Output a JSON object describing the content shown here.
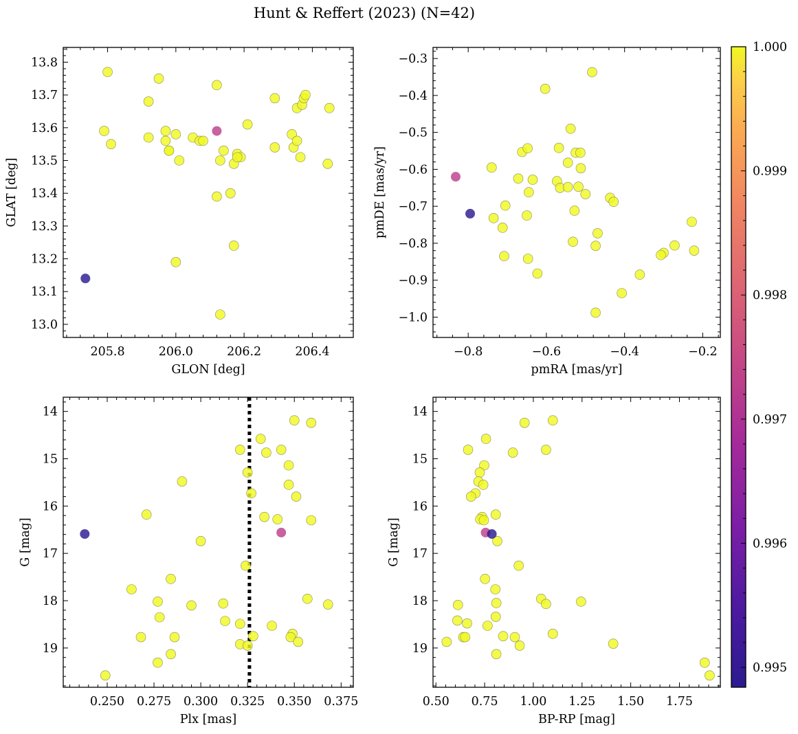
{
  "title": "Hunt & Reffert (2023) (N=42)",
  "colorbar": {
    "min": 0.99484,
    "max": 1.0,
    "ticks": [
      "0.995",
      "0.996",
      "0.997",
      "0.998",
      "0.999",
      "1.000"
    ],
    "tick_values": [
      0.995,
      0.996,
      0.997,
      0.998,
      0.999,
      1.0
    ],
    "colormap": "plasma"
  },
  "chart_data": [
    {
      "type": "scatter",
      "xlabel": "GLON [deg]",
      "ylabel": "GLAT [deg]",
      "xlim": [
        205.67,
        206.52
      ],
      "ylim": [
        12.96,
        13.845
      ],
      "xticks": [
        205.8,
        206.0,
        206.2,
        206.4
      ],
      "xtick_labels": [
        "205.8",
        "206.0",
        "206.2",
        "206.4"
      ],
      "yticks": [
        13.0,
        13.1,
        13.2,
        13.3,
        13.4,
        13.5,
        13.6,
        13.7,
        13.8
      ],
      "ytick_labels": [
        "13.0",
        "13.1",
        "13.2",
        "13.3",
        "13.4",
        "13.5",
        "13.6",
        "13.7",
        "13.8"
      ],
      "points": [
        {
          "x": 205.735,
          "y": 13.14,
          "c": 0.99484
        },
        {
          "x": 206.12,
          "y": 13.59,
          "c": 0.99728
        },
        {
          "x": 205.8,
          "y": 13.77,
          "c": 1.0
        },
        {
          "x": 205.79,
          "y": 13.59,
          "c": 1.0
        },
        {
          "x": 205.81,
          "y": 13.55,
          "c": 1.0
        },
        {
          "x": 205.95,
          "y": 13.75,
          "c": 1.0
        },
        {
          "x": 205.92,
          "y": 13.68,
          "c": 1.0
        },
        {
          "x": 205.92,
          "y": 13.57,
          "c": 1.0
        },
        {
          "x": 205.97,
          "y": 13.59,
          "c": 1.0
        },
        {
          "x": 205.97,
          "y": 13.56,
          "c": 1.0
        },
        {
          "x": 205.98,
          "y": 13.53,
          "c": 1.0
        },
        {
          "x": 205.98,
          "y": 13.53,
          "c": 1.0
        },
        {
          "x": 206.0,
          "y": 13.58,
          "c": 1.0
        },
        {
          "x": 206.01,
          "y": 13.5,
          "c": 1.0
        },
        {
          "x": 206.05,
          "y": 13.57,
          "c": 1.0
        },
        {
          "x": 206.07,
          "y": 13.56,
          "c": 1.0
        },
        {
          "x": 206.08,
          "y": 13.56,
          "c": 1.0
        },
        {
          "x": 206.12,
          "y": 13.73,
          "c": 1.0
        },
        {
          "x": 206.13,
          "y": 13.5,
          "c": 1.0
        },
        {
          "x": 206.14,
          "y": 13.53,
          "c": 1.0
        },
        {
          "x": 206.12,
          "y": 13.39,
          "c": 1.0
        },
        {
          "x": 206.16,
          "y": 13.4,
          "c": 1.0
        },
        {
          "x": 206.17,
          "y": 13.49,
          "c": 1.0
        },
        {
          "x": 206.18,
          "y": 13.52,
          "c": 1.0
        },
        {
          "x": 206.19,
          "y": 13.51,
          "c": 1.0
        },
        {
          "x": 206.21,
          "y": 13.61,
          "c": 1.0
        },
        {
          "x": 206.17,
          "y": 13.24,
          "c": 1.0
        },
        {
          "x": 206.0,
          "y": 13.19,
          "c": 1.0
        },
        {
          "x": 206.13,
          "y": 13.03,
          "c": 1.0
        },
        {
          "x": 206.29,
          "y": 13.69,
          "c": 1.0
        },
        {
          "x": 206.29,
          "y": 13.54,
          "c": 1.0
        },
        {
          "x": 206.34,
          "y": 13.58,
          "c": 1.0
        },
        {
          "x": 206.345,
          "y": 13.54,
          "c": 1.0
        },
        {
          "x": 206.355,
          "y": 13.56,
          "c": 1.0
        },
        {
          "x": 206.355,
          "y": 13.66,
          "c": 1.0
        },
        {
          "x": 206.365,
          "y": 13.51,
          "c": 1.0
        },
        {
          "x": 206.37,
          "y": 13.67,
          "c": 1.0
        },
        {
          "x": 206.375,
          "y": 13.69,
          "c": 1.0
        },
        {
          "x": 206.38,
          "y": 13.7,
          "c": 1.0
        },
        {
          "x": 206.445,
          "y": 13.49,
          "c": 1.0
        },
        {
          "x": 206.45,
          "y": 13.66,
          "c": 1.0
        },
        {
          "x": 206.18,
          "y": 13.51,
          "c": 1.0
        }
      ]
    },
    {
      "type": "scatter",
      "xlabel": "pmRA [mas/yr]",
      "ylabel": "pmDE [mas/yr]",
      "xlim": [
        -0.89,
        -0.155
      ],
      "ylim": [
        -1.055,
        -0.27
      ],
      "xticks": [
        -0.8,
        -0.6,
        -0.4,
        -0.2
      ],
      "xtick_labels": [
        "−0.8",
        "−0.6",
        "−0.4",
        "−0.2"
      ],
      "yticks": [
        -1.0,
        -0.9,
        -0.8,
        -0.7,
        -0.6,
        -0.5,
        -0.4,
        -0.3
      ],
      "ytick_labels": [
        "−1.0",
        "−0.9",
        "−0.8",
        "−0.7",
        "−0.6",
        "−0.5",
        "−0.4",
        "−0.3"
      ],
      "points": [
        {
          "x": -0.795,
          "y": -0.72,
          "c": 0.99484
        },
        {
          "x": -0.832,
          "y": -0.62,
          "c": 0.99728
        },
        {
          "x": -0.483,
          "y": -0.337,
          "c": 1.0
        },
        {
          "x": -0.603,
          "y": -0.382,
          "c": 1.0
        },
        {
          "x": -0.538,
          "y": -0.49,
          "c": 1.0
        },
        {
          "x": -0.568,
          "y": -0.542,
          "c": 1.0
        },
        {
          "x": -0.525,
          "y": -0.555,
          "c": 1.0
        },
        {
          "x": -0.513,
          "y": -0.555,
          "c": 1.0
        },
        {
          "x": -0.662,
          "y": -0.553,
          "c": 1.0
        },
        {
          "x": -0.648,
          "y": -0.543,
          "c": 1.0
        },
        {
          "x": -0.545,
          "y": -0.582,
          "c": 1.0
        },
        {
          "x": -0.512,
          "y": -0.597,
          "c": 1.0
        },
        {
          "x": -0.74,
          "y": -0.595,
          "c": 1.0
        },
        {
          "x": -0.672,
          "y": -0.625,
          "c": 1.0
        },
        {
          "x": -0.635,
          "y": -0.628,
          "c": 1.0
        },
        {
          "x": -0.573,
          "y": -0.632,
          "c": 1.0
        },
        {
          "x": -0.565,
          "y": -0.65,
          "c": 1.0
        },
        {
          "x": -0.545,
          "y": -0.648,
          "c": 1.0
        },
        {
          "x": -0.518,
          "y": -0.647,
          "c": 1.0
        },
        {
          "x": -0.645,
          "y": -0.662,
          "c": 1.0
        },
        {
          "x": -0.5,
          "y": -0.667,
          "c": 1.0
        },
        {
          "x": -0.437,
          "y": -0.677,
          "c": 1.0
        },
        {
          "x": -0.428,
          "y": -0.688,
          "c": 1.0
        },
        {
          "x": -0.705,
          "y": -0.698,
          "c": 1.0
        },
        {
          "x": -0.528,
          "y": -0.712,
          "c": 1.0
        },
        {
          "x": -0.65,
          "y": -0.725,
          "c": 1.0
        },
        {
          "x": -0.735,
          "y": -0.732,
          "c": 1.0
        },
        {
          "x": -0.712,
          "y": -0.758,
          "c": 1.0
        },
        {
          "x": -0.469,
          "y": -0.773,
          "c": 1.0
        },
        {
          "x": -0.532,
          "y": -0.796,
          "c": 1.0
        },
        {
          "x": -0.474,
          "y": -0.807,
          "c": 1.0
        },
        {
          "x": -0.708,
          "y": -0.835,
          "c": 1.0
        },
        {
          "x": -0.647,
          "y": -0.842,
          "c": 1.0
        },
        {
          "x": -0.623,
          "y": -0.882,
          "c": 1.0
        },
        {
          "x": -0.361,
          "y": -0.885,
          "c": 1.0
        },
        {
          "x": -0.407,
          "y": -0.935,
          "c": 1.0
        },
        {
          "x": -0.474,
          "y": -0.988,
          "c": 1.0
        },
        {
          "x": -0.228,
          "y": -0.742,
          "c": 1.0
        },
        {
          "x": -0.222,
          "y": -0.82,
          "c": 1.0
        },
        {
          "x": -0.272,
          "y": -0.806,
          "c": 1.0
        },
        {
          "x": -0.3,
          "y": -0.826,
          "c": 1.0
        },
        {
          "x": -0.307,
          "y": -0.832,
          "c": 1.0
        }
      ]
    },
    {
      "type": "scatter",
      "xlabel": "Plx [mas]",
      "ylabel": "G [mag]",
      "xlim": [
        0.2265,
        0.3815
      ],
      "ylim": [
        19.83,
        13.7
      ],
      "y_inverted": true,
      "xticks": [
        0.25,
        0.275,
        0.3,
        0.325,
        0.35,
        0.375
      ],
      "xtick_labels": [
        "0.250",
        "0.275",
        "0.300",
        "0.325",
        "0.350",
        "0.375"
      ],
      "yticks": [
        14,
        15,
        16,
        17,
        18,
        19
      ],
      "ytick_labels": [
        "14",
        "15",
        "16",
        "17",
        "18",
        "19"
      ],
      "vline": 0.326,
      "points": [
        {
          "x": 0.238,
          "y": 16.59,
          "c": 0.99484
        },
        {
          "x": 0.343,
          "y": 16.56,
          "c": 0.99728
        },
        {
          "x": 0.35,
          "y": 14.19,
          "c": 1.0
        },
        {
          "x": 0.359,
          "y": 14.24,
          "c": 1.0
        },
        {
          "x": 0.332,
          "y": 14.58,
          "c": 1.0
        },
        {
          "x": 0.321,
          "y": 14.81,
          "c": 1.0
        },
        {
          "x": 0.343,
          "y": 14.81,
          "c": 1.0
        },
        {
          "x": 0.335,
          "y": 14.87,
          "c": 1.0
        },
        {
          "x": 0.347,
          "y": 15.14,
          "c": 1.0
        },
        {
          "x": 0.325,
          "y": 15.29,
          "c": 1.0
        },
        {
          "x": 0.29,
          "y": 15.48,
          "c": 1.0
        },
        {
          "x": 0.347,
          "y": 15.55,
          "c": 1.0
        },
        {
          "x": 0.327,
          "y": 15.73,
          "c": 1.0
        },
        {
          "x": 0.351,
          "y": 15.8,
          "c": 1.0
        },
        {
          "x": 0.271,
          "y": 16.18,
          "c": 1.0
        },
        {
          "x": 0.334,
          "y": 16.23,
          "c": 1.0
        },
        {
          "x": 0.341,
          "y": 16.28,
          "c": 1.0
        },
        {
          "x": 0.359,
          "y": 16.3,
          "c": 1.0
        },
        {
          "x": 0.3,
          "y": 16.74,
          "c": 1.0
        },
        {
          "x": 0.324,
          "y": 17.26,
          "c": 1.0
        },
        {
          "x": 0.284,
          "y": 17.54,
          "c": 1.0
        },
        {
          "x": 0.263,
          "y": 17.76,
          "c": 1.0
        },
        {
          "x": 0.357,
          "y": 17.96,
          "c": 1.0
        },
        {
          "x": 0.277,
          "y": 18.02,
          "c": 1.0
        },
        {
          "x": 0.312,
          "y": 18.06,
          "c": 1.0
        },
        {
          "x": 0.368,
          "y": 18.08,
          "c": 1.0
        },
        {
          "x": 0.295,
          "y": 18.1,
          "c": 1.0
        },
        {
          "x": 0.278,
          "y": 18.35,
          "c": 1.0
        },
        {
          "x": 0.313,
          "y": 18.43,
          "c": 1.0
        },
        {
          "x": 0.321,
          "y": 18.49,
          "c": 1.0
        },
        {
          "x": 0.338,
          "y": 18.53,
          "c": 1.0
        },
        {
          "x": 0.349,
          "y": 18.7,
          "c": 1.0
        },
        {
          "x": 0.328,
          "y": 18.75,
          "c": 1.0
        },
        {
          "x": 0.268,
          "y": 18.77,
          "c": 1.0
        },
        {
          "x": 0.286,
          "y": 18.77,
          "c": 1.0
        },
        {
          "x": 0.348,
          "y": 18.77,
          "c": 1.0
        },
        {
          "x": 0.352,
          "y": 18.87,
          "c": 1.0
        },
        {
          "x": 0.321,
          "y": 18.92,
          "c": 1.0
        },
        {
          "x": 0.325,
          "y": 18.95,
          "c": 1.0
        },
        {
          "x": 0.284,
          "y": 19.13,
          "c": 1.0
        },
        {
          "x": 0.277,
          "y": 19.31,
          "c": 1.0
        },
        {
          "x": 0.249,
          "y": 19.58,
          "c": 1.0
        }
      ]
    },
    {
      "type": "scatter",
      "xlabel": "BP-RP [mag]",
      "ylabel": "G [mag]",
      "xlim": [
        0.485,
        1.96
      ],
      "ylim": [
        19.83,
        13.7
      ],
      "y_inverted": true,
      "xticks": [
        0.5,
        0.75,
        1.0,
        1.25,
        1.5,
        1.75
      ],
      "xtick_labels": [
        "0.50",
        "0.75",
        "1.00",
        "1.25",
        "1.50",
        "1.75"
      ],
      "yticks": [
        14,
        15,
        16,
        17,
        18,
        19
      ],
      "ytick_labels": [
        "14",
        "15",
        "16",
        "17",
        "18",
        "19"
      ],
      "points": [
        {
          "x": 0.787,
          "y": 16.59,
          "c": 0.99484
        },
        {
          "x": 0.755,
          "y": 16.56,
          "c": 0.99728
        },
        {
          "x": 1.1,
          "y": 14.19,
          "c": 1.0
        },
        {
          "x": 0.955,
          "y": 14.24,
          "c": 1.0
        },
        {
          "x": 0.757,
          "y": 14.58,
          "c": 1.0
        },
        {
          "x": 0.665,
          "y": 14.81,
          "c": 1.0
        },
        {
          "x": 1.065,
          "y": 14.81,
          "c": 1.0
        },
        {
          "x": 0.895,
          "y": 14.87,
          "c": 1.0
        },
        {
          "x": 0.748,
          "y": 15.14,
          "c": 1.0
        },
        {
          "x": 0.725,
          "y": 15.29,
          "c": 1.0
        },
        {
          "x": 0.718,
          "y": 15.48,
          "c": 1.0
        },
        {
          "x": 0.743,
          "y": 15.55,
          "c": 1.0
        },
        {
          "x": 0.703,
          "y": 15.73,
          "c": 1.0
        },
        {
          "x": 0.68,
          "y": 15.8,
          "c": 1.0
        },
        {
          "x": 0.807,
          "y": 16.18,
          "c": 1.0
        },
        {
          "x": 0.737,
          "y": 16.23,
          "c": 1.0
        },
        {
          "x": 0.727,
          "y": 16.28,
          "c": 1.0
        },
        {
          "x": 0.746,
          "y": 16.3,
          "c": 1.0
        },
        {
          "x": 0.815,
          "y": 16.74,
          "c": 1.0
        },
        {
          "x": 0.925,
          "y": 17.26,
          "c": 1.0
        },
        {
          "x": 0.752,
          "y": 17.54,
          "c": 1.0
        },
        {
          "x": 0.805,
          "y": 17.76,
          "c": 1.0
        },
        {
          "x": 1.04,
          "y": 17.96,
          "c": 1.0
        },
        {
          "x": 0.81,
          "y": 18.05,
          "c": 1.0
        },
        {
          "x": 1.065,
          "y": 18.07,
          "c": 1.0
        },
        {
          "x": 1.245,
          "y": 18.02,
          "c": 1.0
        },
        {
          "x": 0.613,
          "y": 18.09,
          "c": 1.0
        },
        {
          "x": 0.807,
          "y": 18.34,
          "c": 1.0
        },
        {
          "x": 0.61,
          "y": 18.42,
          "c": 1.0
        },
        {
          "x": 0.66,
          "y": 18.48,
          "c": 1.0
        },
        {
          "x": 0.765,
          "y": 18.53,
          "c": 1.0
        },
        {
          "x": 1.1,
          "y": 18.7,
          "c": 1.0
        },
        {
          "x": 0.845,
          "y": 18.75,
          "c": 1.0
        },
        {
          "x": 0.64,
          "y": 18.77,
          "c": 1.0
        },
        {
          "x": 0.65,
          "y": 18.77,
          "c": 1.0
        },
        {
          "x": 0.905,
          "y": 18.77,
          "c": 1.0
        },
        {
          "x": 0.555,
          "y": 18.87,
          "c": 1.0
        },
        {
          "x": 1.41,
          "y": 18.91,
          "c": 1.0
        },
        {
          "x": 0.93,
          "y": 18.95,
          "c": 1.0
        },
        {
          "x": 0.81,
          "y": 19.13,
          "c": 1.0
        },
        {
          "x": 1.88,
          "y": 19.31,
          "c": 1.0
        },
        {
          "x": 1.905,
          "y": 19.58,
          "c": 1.0
        }
      ]
    }
  ]
}
